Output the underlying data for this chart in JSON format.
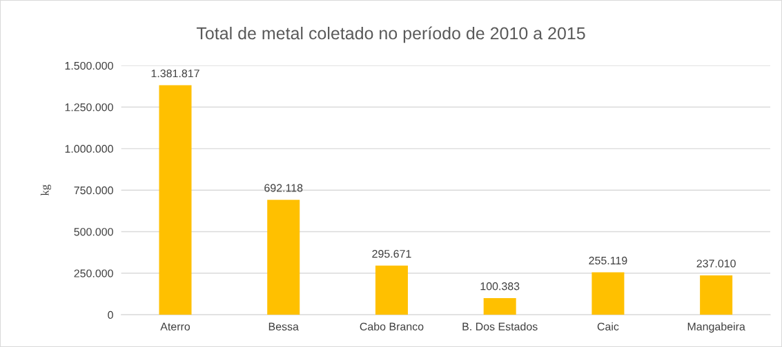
{
  "chart_data": {
    "type": "bar",
    "title": "Total de metal coletado no período de 2010 a 2015",
    "ylabel": "kg",
    "categories": [
      "Aterro",
      "Bessa",
      "Cabo Branco",
      "B. Dos Estados",
      "Caic",
      "Mangabeira"
    ],
    "values": [
      1381817,
      692118,
      295671,
      100383,
      255119,
      237010
    ],
    "value_labels": [
      "1.381.817",
      "692.118",
      "295.671",
      "100.383",
      "255.119",
      "237.010"
    ],
    "color": "#ffc000",
    "ylim": [
      0,
      1500000
    ],
    "yticks": [
      0,
      {
        "value": 250000,
        "label": "250.000"
      },
      {
        "value": 500000,
        "label": "500.000"
      },
      {
        "value": 750000,
        "label": "750.000"
      },
      {
        "value": 1000000,
        "label": "1.000.000"
      },
      {
        "value": 1250000,
        "label": "1.250.000"
      },
      {
        "value": 1500000,
        "label": "1.500.000"
      }
    ],
    "grid": "y"
  }
}
